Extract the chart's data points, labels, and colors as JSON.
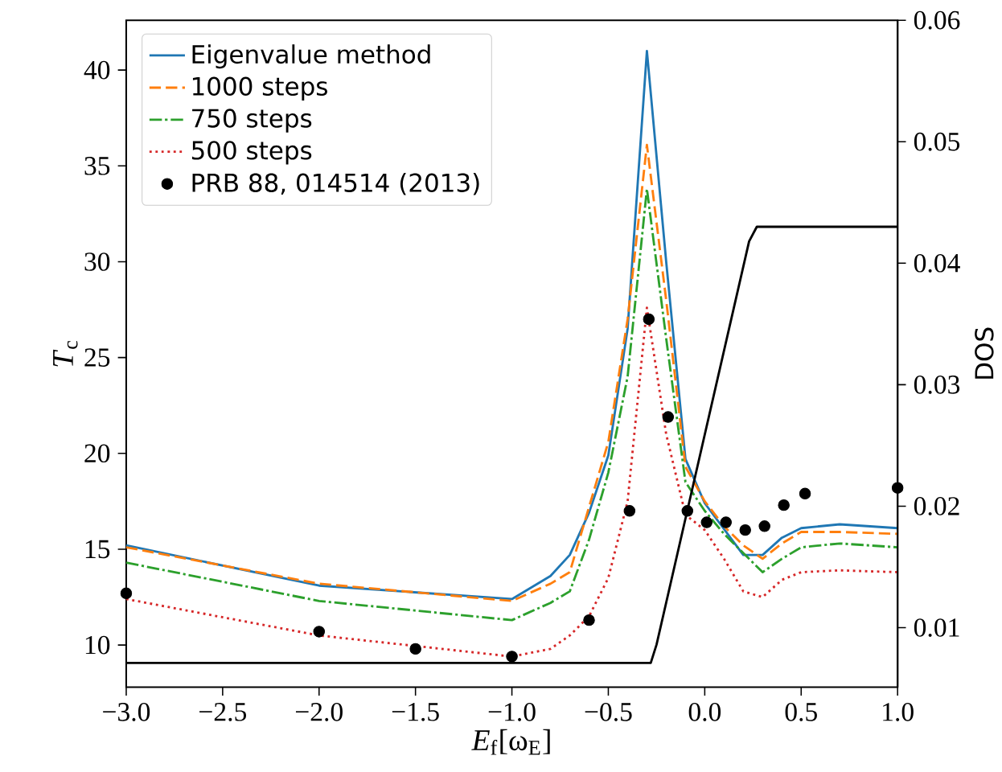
{
  "chart_data": {
    "type": "line",
    "xlabel": "*E*$_{f}$[ω$_{E}$]",
    "ylabel": "*T*$_{c}$",
    "y2label": "DOS",
    "xlim": [
      -3,
      1
    ],
    "ylim": [
      7.8,
      42.6
    ],
    "y2lim": [
      0.0051,
      0.06
    ],
    "xticks": [
      {
        "value": -3,
        "label": "−3.0"
      },
      {
        "value": -2.5,
        "label": "−2.5"
      },
      {
        "value": -2,
        "label": "−2.0"
      },
      {
        "value": -1.5,
        "label": "−1.5"
      },
      {
        "value": -1,
        "label": "−1.0"
      },
      {
        "value": -0.5,
        "label": "−0.5"
      },
      {
        "value": 0,
        "label": "0.0"
      },
      {
        "value": 0.5,
        "label": "0.5"
      },
      {
        "value": 1,
        "label": "1.0"
      }
    ],
    "yticks": [
      10,
      15,
      20,
      25,
      30,
      35,
      40
    ],
    "y2ticks": [
      0.01,
      0.02,
      0.03,
      0.04,
      0.05,
      0.06
    ],
    "legend": "top left",
    "grid": false,
    "series": [
      {
        "name": "Eigenvalue method",
        "color": "#1f77b4",
        "line_style": "solid",
        "x": [
          -3,
          -2,
          -1,
          -0.8,
          -0.7,
          -0.6,
          -0.5,
          -0.4,
          -0.3,
          -0.2,
          -0.1,
          0,
          0.2,
          0.3,
          0.4,
          0.5,
          0.7,
          1.0
        ],
        "values": [
          15.2,
          13.1,
          12.4,
          13.6,
          14.7,
          16.9,
          19.9,
          26.5,
          41.0,
          30.0,
          19.7,
          17.4,
          14.7,
          14.7,
          15.6,
          16.1,
          16.3,
          16.1
        ]
      },
      {
        "name": "1000 steps",
        "color": "#ff7f0e",
        "line_style": "dashed",
        "x": [
          -3,
          -2,
          -1,
          -0.8,
          -0.7,
          -0.6,
          -0.5,
          -0.4,
          -0.3,
          -0.2,
          -0.1,
          0,
          0.1,
          0.2,
          0.3,
          0.4,
          0.5,
          0.7,
          1.0
        ],
        "values": [
          15.1,
          13.2,
          12.3,
          13.2,
          13.8,
          17.2,
          20.6,
          27.0,
          36.1,
          28.0,
          19.3,
          17.5,
          16.2,
          15.2,
          14.5,
          15.3,
          15.9,
          15.9,
          15.8
        ]
      },
      {
        "name": "750 steps",
        "color": "#2ca02c",
        "line_style": "dashdot",
        "x": [
          -3,
          -2,
          -1,
          -0.8,
          -0.7,
          -0.6,
          -0.5,
          -0.4,
          -0.3,
          -0.2,
          -0.1,
          0,
          0.1,
          0.2,
          0.3,
          0.4,
          0.5,
          0.7,
          1.0
        ],
        "values": [
          14.3,
          12.3,
          11.3,
          12.2,
          12.8,
          15.5,
          19.0,
          24.0,
          33.8,
          26.0,
          18.5,
          17.0,
          15.8,
          14.8,
          13.8,
          14.5,
          15.1,
          15.3,
          15.1
        ]
      },
      {
        "name": "500 steps",
        "color": "#d62728",
        "line_style": "dotted",
        "x": [
          -3,
          -2,
          -1,
          -0.8,
          -0.7,
          -0.6,
          -0.5,
          -0.4,
          -0.3,
          -0.2,
          -0.1,
          0,
          0.1,
          0.2,
          0.3,
          0.4,
          0.5,
          0.7,
          1.0
        ],
        "values": [
          12.4,
          10.5,
          9.4,
          9.8,
          10.5,
          11.5,
          13.5,
          17.5,
          27.6,
          21.0,
          16.8,
          16.0,
          14.5,
          12.8,
          12.5,
          13.4,
          13.8,
          13.9,
          13.8
        ]
      },
      {
        "name": "PRB 88, 014514 (2013)",
        "type": "scatter",
        "marker": "circle",
        "color": "#000000",
        "x": [
          -3,
          -2,
          -1.5,
          -1,
          -0.6,
          -0.39,
          -0.29,
          -0.19,
          -0.09,
          0.01,
          0.11,
          0.21,
          0.31,
          0.41,
          0.52,
          1.0
        ],
        "values": [
          12.7,
          10.7,
          9.8,
          9.4,
          11.3,
          17.0,
          27.0,
          21.9,
          17.0,
          16.4,
          16.4,
          16.0,
          16.2,
          17.3,
          17.9,
          18.2
        ]
      },
      {
        "color": "#000000",
        "axis": "y2",
        "line_style": "solid",
        "x": [
          -3,
          -0.28,
          -0.25,
          0.23,
          0.27,
          1.0
        ],
        "values": [
          0.0071,
          0.0071,
          0.0086,
          0.0418,
          0.043,
          0.043
        ]
      }
    ]
  }
}
